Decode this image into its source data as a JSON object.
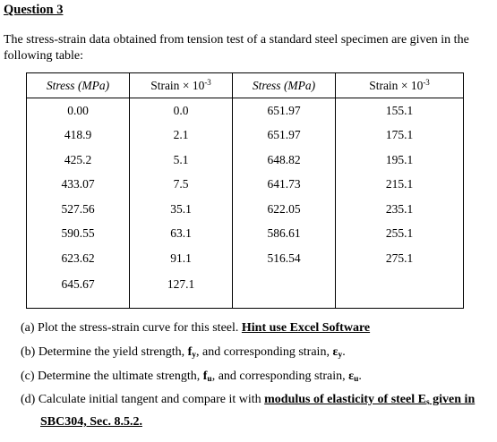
{
  "title": "Question 3",
  "intro": "The stress-strain data obtained from tension test of a standard steel specimen are given in the following table:",
  "table": {
    "headers": {
      "stress": "Stress (MPa)",
      "strain_prefix": "Strain",
      "times": "×",
      "strain_base": "10",
      "strain_exp": "-3"
    },
    "rows": [
      [
        "0.00",
        "0.0",
        "651.97",
        "155.1"
      ],
      [
        "418.9",
        "2.1",
        "651.97",
        "175.1"
      ],
      [
        "425.2",
        "5.1",
        "648.82",
        "195.1"
      ],
      [
        "433.07",
        "7.5",
        "641.73",
        "215.1"
      ],
      [
        "527.56",
        "35.1",
        "622.05",
        "235.1"
      ],
      [
        "590.55",
        "63.1",
        "586.61",
        "255.1"
      ],
      [
        "623.62",
        "91.1",
        "516.54",
        "275.1"
      ],
      [
        "645.67",
        "127.1",
        "",
        ""
      ]
    ]
  },
  "tasks": {
    "a": {
      "text": "(a) Plot the stress-strain curve for this steel. ",
      "hint": "Hint use Excel Software"
    },
    "b": {
      "pre": "(b) Determine the yield strength, ",
      "sym": "f",
      "sym_sub": "y",
      "mid": ", and corresponding strain, ",
      "eps": "ε",
      "eps_sub": "y",
      "end": "."
    },
    "c": {
      "pre": "(c) Determine the ultimate strength, ",
      "sym": "f",
      "sym_sub": "u",
      "mid": ", and corresponding strain, ",
      "eps": "ε",
      "eps_sub": "u",
      "end": "."
    },
    "d": {
      "pre": "(d) Calculate initial tangent and compare it with ",
      "link": "modulus of elasticity of steel E",
      "link_sub": "s",
      "link_end": " given in",
      "line2": "SBC304, Sec. 8.5.2."
    }
  }
}
